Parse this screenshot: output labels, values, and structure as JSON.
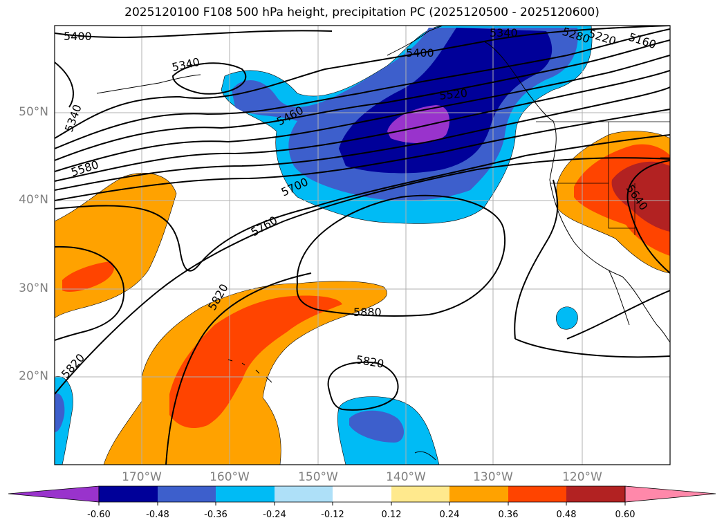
{
  "title": "2025120100 F108 500 hPa height, precipitation PC (2025120500 - 2025120600)",
  "latitude_labels": [
    "50°N",
    "40°N",
    "30°N",
    "20°N"
  ],
  "longitude_labels": [
    "170°W",
    "160°W",
    "150°W",
    "140°W",
    "130°W",
    "120°W"
  ],
  "contour_labels": [
    "5400",
    "5340",
    "5340",
    "5280",
    "5220",
    "5160",
    "5400",
    "5520",
    "5460",
    "5340",
    "5580",
    "5700",
    "5760",
    "5640",
    "5820",
    "5880",
    "5820",
    "5820"
  ],
  "colorbar": {
    "tick_labels": [
      "-0.60",
      "-0.48",
      "-0.36",
      "-0.24",
      "-0.12",
      "0.12",
      "0.24",
      "0.36",
      "0.48",
      "0.60"
    ],
    "colors": [
      "#9933cc",
      "#000099",
      "#3d5fcc",
      "#00bbf5",
      "#aee0f8",
      "#ffffff",
      "#ffe98d",
      "#ffa200",
      "#ff4400",
      "#b22222",
      "#ff88aa"
    ]
  },
  "fill_colors": {
    "ocean": "#ffffff",
    "purple": "#9933cc",
    "navy": "#000099",
    "royal": "#3d5fcc",
    "cyan": "#00bbf5",
    "orange": "#ffa200",
    "red": "#ff4400",
    "darkred": "#b22222"
  }
}
